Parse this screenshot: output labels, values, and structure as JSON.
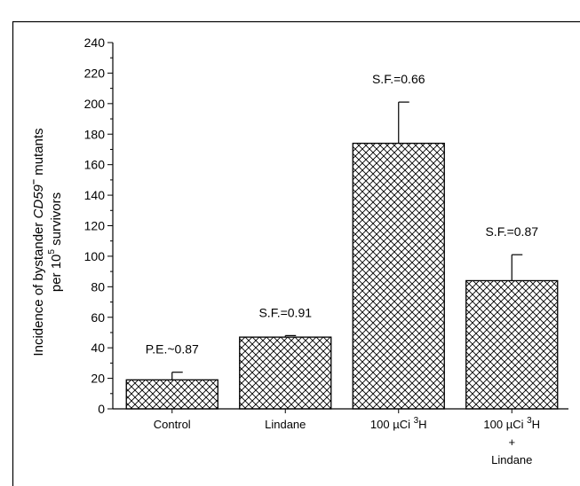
{
  "chart_data": {
    "type": "bar",
    "ylabel_line1_prefix": "Incidence of bystander ",
    "ylabel_line1_gene": "CD59",
    "ylabel_line1_sup": "–",
    "ylabel_line1_suffix": " mutants",
    "ylabel_line2_prefix": "per 10",
    "ylabel_line2_sup": "5",
    "ylabel_line2_suffix": " survivors",
    "ylim": [
      0,
      240
    ],
    "yticks": [
      "0",
      "20",
      "40",
      "60",
      "80",
      "100",
      "120",
      "140",
      "160",
      "180",
      "200",
      "220",
      "240"
    ],
    "minor_tick_step": 10,
    "grid": false,
    "categories": [
      {
        "lines": [
          {
            "text": "Control"
          }
        ]
      },
      {
        "lines": [
          {
            "text": "Lindane"
          }
        ]
      },
      {
        "lines": [
          {
            "text": "100 µCi ",
            "sup": "3",
            "after": "H"
          }
        ]
      },
      {
        "lines": [
          {
            "text": "100 µCi ",
            "sup": "3",
            "after": "H"
          },
          {
            "text": "+"
          },
          {
            "text": "Lindane"
          }
        ]
      }
    ],
    "values": [
      19,
      47,
      174,
      84
    ],
    "error_upper": [
      24,
      48,
      201,
      101
    ],
    "annotations": [
      "P.E.~0.87",
      "S.F.=0.91",
      "S.F.=0.66",
      "S.F.=0.87"
    ],
    "bar_fill_pattern": "crosshatch",
    "colors": {
      "bar_stroke": "#000000",
      "hatch": "#000000",
      "background": "#ffffff"
    }
  }
}
